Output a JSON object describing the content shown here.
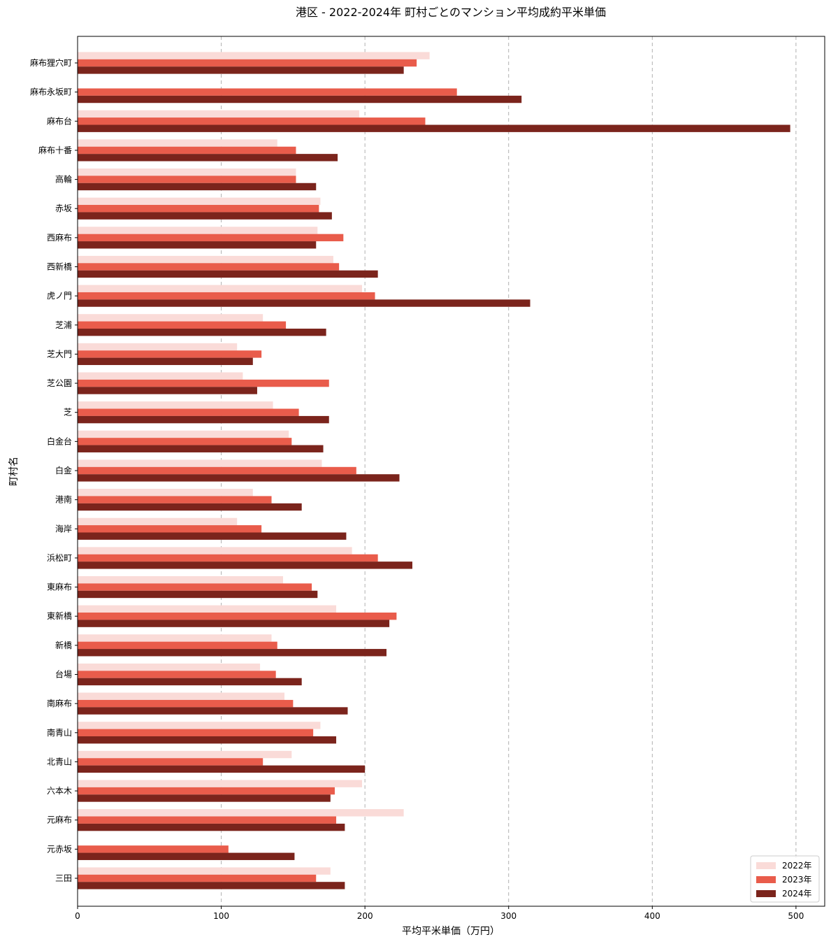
{
  "chart_data": {
    "type": "bar",
    "orientation": "horizontal",
    "title": "港区 - 2022-2024年 町村ごとのマンション平均成約平米単価",
    "xlabel": "平均平米単価（万円）",
    "ylabel": "町村名",
    "xlim": [
      0,
      520
    ],
    "xticks": [
      0,
      100,
      200,
      300,
      400,
      500
    ],
    "grid": "x-dashed",
    "legend_position": "bottom-right",
    "categories": [
      "麻布狸穴町",
      "麻布永坂町",
      "麻布台",
      "麻布十番",
      "高輪",
      "赤坂",
      "西麻布",
      "西新橋",
      "虎ノ門",
      "芝浦",
      "芝大門",
      "芝公園",
      "芝",
      "白金台",
      "白金",
      "港南",
      "海岸",
      "浜松町",
      "東麻布",
      "東新橋",
      "新橋",
      "台場",
      "南麻布",
      "南青山",
      "北青山",
      "六本木",
      "元麻布",
      "元赤坂",
      "三田"
    ],
    "series": [
      {
        "name": "2022年",
        "color": "#fadbd8",
        "values": [
          245,
          null,
          196,
          139,
          152,
          169,
          167,
          178,
          198,
          129,
          111,
          115,
          136,
          147,
          170,
          122,
          111,
          191,
          143,
          180,
          135,
          127,
          144,
          169,
          149,
          198,
          227,
          null,
          176
        ]
      },
      {
        "name": "2023年",
        "color": "#e95c4b",
        "values": [
          236,
          264,
          242,
          152,
          152,
          168,
          185,
          182,
          207,
          145,
          128,
          175,
          154,
          149,
          194,
          135,
          128,
          209,
          163,
          222,
          139,
          138,
          150,
          164,
          129,
          179,
          180,
          105,
          166
        ]
      },
      {
        "name": "2024年",
        "color": "#7b241c",
        "values": [
          227,
          309,
          496,
          181,
          166,
          177,
          166,
          209,
          315,
          173,
          122,
          125,
          175,
          171,
          224,
          156,
          187,
          233,
          167,
          217,
          215,
          156,
          188,
          180,
          200,
          176,
          186,
          151,
          186
        ]
      }
    ]
  }
}
